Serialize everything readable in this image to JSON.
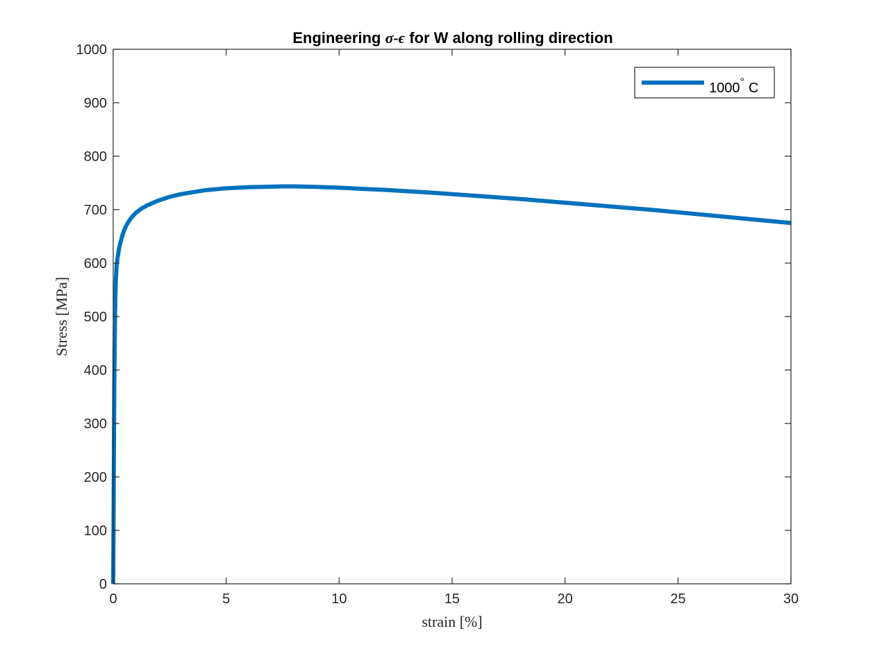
{
  "chart_data": {
    "type": "line",
    "title": "Engineering  σ-ϵ for W along rolling direction",
    "title_parts": {
      "prefix": "Engineering ",
      "symbol": "σ-ϵ",
      "suffix": " for W along rolling direction"
    },
    "xlabel": "strain [%]",
    "ylabel": "Stress [MPa]",
    "xlim": [
      0,
      30
    ],
    "ylim": [
      0,
      1000
    ],
    "x_ticks": [
      0,
      5,
      10,
      15,
      20,
      25,
      30
    ],
    "x_tick_labels": [
      "0",
      "5",
      "10",
      "15",
      "20",
      "25",
      "30"
    ],
    "y_ticks": [
      0,
      100,
      200,
      300,
      400,
      500,
      600,
      700,
      800,
      900,
      1000
    ],
    "y_tick_labels": [
      "0",
      "100",
      "200",
      "300",
      "400",
      "500",
      "600",
      "700",
      "800",
      "900",
      "1000"
    ],
    "grid": false,
    "legend_position": "top-right",
    "series": [
      {
        "name": "1000° C",
        "legend_value": "1000",
        "legend_degree": "°",
        "legend_unit": "C",
        "color": "#0072BD",
        "x": [
          0,
          0.02,
          0.05,
          0.08,
          0.1,
          0.12,
          0.15,
          0.2,
          0.25,
          0.3,
          0.4,
          0.5,
          0.6,
          0.8,
          1.0,
          1.25,
          1.5,
          2.0,
          2.5,
          3.0,
          4.0,
          5.0,
          6.0,
          7.0,
          7.5,
          8.0,
          9.0,
          10.0,
          11.0,
          12.0,
          14.0,
          16.0,
          18.0,
          20.0,
          22.0,
          24.0,
          26.0,
          28.0,
          30.0
        ],
        "y": [
          0,
          150,
          380,
          500,
          545,
          570,
          595,
          612,
          625,
          635,
          651,
          663,
          672,
          685,
          694,
          702,
          708,
          717,
          724,
          729,
          736,
          740,
          742,
          743,
          743.5,
          743.5,
          742.5,
          741,
          739,
          737,
          732,
          726,
          720,
          713,
          706,
          699,
          691,
          683,
          675
        ]
      }
    ]
  },
  "colors": {
    "axis": "#262626",
    "series": "#0072BD",
    "background": "#ffffff"
  }
}
